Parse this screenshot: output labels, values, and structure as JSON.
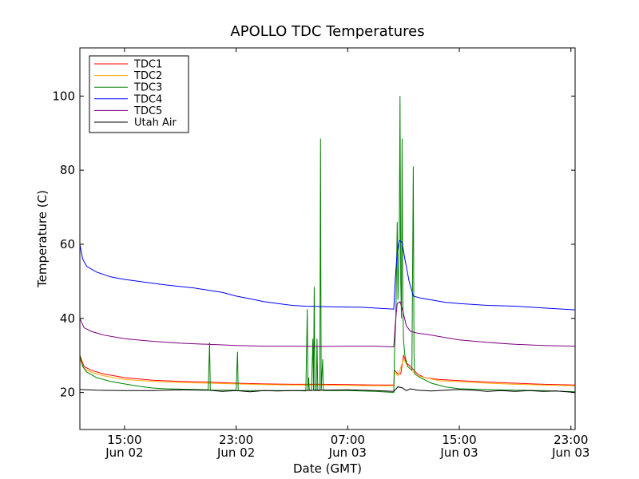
{
  "chart_data": {
    "type": "line",
    "title": "APOLLO TDC Temperatures",
    "xlabel": "Date (GMT)",
    "ylabel": "Temperature (C)",
    "xlim": [
      11.8,
      47.3
    ],
    "ylim": [
      10,
      113
    ],
    "y_ticks": [
      20,
      40,
      60,
      80,
      100
    ],
    "x_ticks": [
      {
        "x": 15,
        "time": "15:00",
        "date": "Jun 02"
      },
      {
        "x": 23,
        "time": "23:00",
        "date": "Jun 02"
      },
      {
        "x": 31,
        "time": "07:00",
        "date": "Jun 03"
      },
      {
        "x": 39,
        "time": "15:00",
        "date": "Jun 03"
      },
      {
        "x": 47,
        "time": "23:00",
        "date": "Jun 03"
      }
    ],
    "grid": false,
    "legend_position": "top-left",
    "series": [
      {
        "name": "TDC1",
        "color": "#ff0000",
        "points": [
          [
            11.8,
            30
          ],
          [
            12.1,
            27
          ],
          [
            12.6,
            26
          ],
          [
            13.5,
            25
          ],
          [
            15,
            24
          ],
          [
            17,
            23.3
          ],
          [
            19,
            23
          ],
          [
            21,
            22.8
          ],
          [
            23,
            22.5
          ],
          [
            25,
            22.3
          ],
          [
            27,
            22.2
          ],
          [
            29,
            22.2
          ],
          [
            31,
            22.1
          ],
          [
            33,
            22
          ],
          [
            34.3,
            22
          ],
          [
            34.35,
            26
          ],
          [
            34.6,
            25
          ],
          [
            34.8,
            25
          ],
          [
            35,
            30
          ],
          [
            35.2,
            28
          ],
          [
            35.5,
            27
          ],
          [
            36,
            25
          ],
          [
            36.5,
            24
          ],
          [
            37.5,
            23.5
          ],
          [
            39,
            23.2
          ],
          [
            41,
            22.8
          ],
          [
            43,
            22.5
          ],
          [
            45,
            22.2
          ],
          [
            47.3,
            22
          ]
        ]
      },
      {
        "name": "TDC2",
        "color": "#ffaa00",
        "points": [
          [
            11.8,
            29
          ],
          [
            12.1,
            26.5
          ],
          [
            12.6,
            25.5
          ],
          [
            13.5,
            24.5
          ],
          [
            15,
            23.5
          ],
          [
            17,
            23
          ],
          [
            19,
            22.7
          ],
          [
            21,
            22.5
          ],
          [
            23,
            22.3
          ],
          [
            25,
            22.1
          ],
          [
            27,
            22
          ],
          [
            29,
            22
          ],
          [
            31,
            21.9
          ],
          [
            33,
            21.8
          ],
          [
            34.3,
            21.8
          ],
          [
            34.35,
            25.5
          ],
          [
            34.6,
            24.5
          ],
          [
            35,
            29
          ],
          [
            35.3,
            27
          ],
          [
            36,
            24.5
          ],
          [
            37.5,
            23.2
          ],
          [
            39,
            22.9
          ],
          [
            41,
            22.5
          ],
          [
            43,
            22.2
          ],
          [
            45,
            22
          ],
          [
            47.3,
            21.8
          ]
        ]
      },
      {
        "name": "TDC3",
        "color": "#008000",
        "points": [
          [
            11.8,
            30
          ],
          [
            12,
            27
          ],
          [
            12.3,
            25.5
          ],
          [
            13,
            24
          ],
          [
            14,
            23
          ],
          [
            15,
            22.3
          ],
          [
            16,
            21.7
          ],
          [
            17,
            21.2
          ],
          [
            18,
            21
          ],
          [
            20,
            20.8
          ],
          [
            21,
            20.7
          ],
          [
            21.1,
            33.5
          ],
          [
            21.15,
            20.6
          ],
          [
            23,
            20.6
          ],
          [
            23.1,
            31
          ],
          [
            23.15,
            20.5
          ],
          [
            25,
            20.5
          ],
          [
            27,
            20.5
          ],
          [
            28,
            20.4
          ],
          [
            28.1,
            42.5
          ],
          [
            28.15,
            20.5
          ],
          [
            28.2,
            24
          ],
          [
            28.25,
            20.5
          ],
          [
            28.4,
            20.5
          ],
          [
            28.5,
            34.5
          ],
          [
            28.55,
            20.5
          ],
          [
            28.6,
            48.5
          ],
          [
            28.65,
            20.5
          ],
          [
            28.75,
            20.5
          ],
          [
            28.8,
            34.5
          ],
          [
            28.85,
            20.5
          ],
          [
            29,
            20.5
          ],
          [
            29.05,
            88.5
          ],
          [
            29.1,
            20.5
          ],
          [
            29.2,
            29
          ],
          [
            29.25,
            20.5
          ],
          [
            31,
            20.5
          ],
          [
            33,
            20.3
          ],
          [
            34.3,
            20
          ],
          [
            34.35,
            30
          ],
          [
            34.45,
            40
          ],
          [
            34.55,
            66
          ],
          [
            34.6,
            45
          ],
          [
            34.7,
            62
          ],
          [
            34.75,
            100
          ],
          [
            34.8,
            50
          ],
          [
            34.85,
            40
          ],
          [
            34.9,
            88.5
          ],
          [
            34.95,
            45
          ],
          [
            35,
            34
          ],
          [
            35.1,
            30
          ],
          [
            35.3,
            27
          ],
          [
            35.6,
            26
          ],
          [
            35.7,
            81
          ],
          [
            35.75,
            30
          ],
          [
            35.8,
            25
          ],
          [
            36.2,
            24
          ],
          [
            37,
            22.5
          ],
          [
            38,
            21.5
          ],
          [
            39,
            21
          ],
          [
            41,
            20.8
          ],
          [
            43,
            20.6
          ],
          [
            45,
            20.5
          ],
          [
            47.3,
            20.2
          ]
        ]
      },
      {
        "name": "TDC4",
        "color": "#0000ff",
        "points": [
          [
            11.8,
            60
          ],
          [
            12,
            56
          ],
          [
            12.3,
            54
          ],
          [
            13,
            52.5
          ],
          [
            14,
            51.2
          ],
          [
            15,
            50.5
          ],
          [
            16,
            50
          ],
          [
            17,
            49.5
          ],
          [
            18,
            49
          ],
          [
            20,
            48.2
          ],
          [
            21,
            47.6
          ],
          [
            22,
            47
          ],
          [
            23,
            46
          ],
          [
            24,
            45.3
          ],
          [
            25,
            44.5
          ],
          [
            26,
            44
          ],
          [
            27,
            43.5
          ],
          [
            28,
            43.3
          ],
          [
            30,
            43.1
          ],
          [
            32,
            43
          ],
          [
            34.3,
            42.5
          ],
          [
            34.4,
            50
          ],
          [
            34.55,
            58
          ],
          [
            34.7,
            61
          ],
          [
            34.9,
            60.5
          ],
          [
            35.1,
            56
          ],
          [
            35.4,
            50
          ],
          [
            35.7,
            46
          ],
          [
            36.2,
            45.5
          ],
          [
            37,
            45
          ],
          [
            38,
            44.3
          ],
          [
            39,
            44
          ],
          [
            41,
            43.5
          ],
          [
            43,
            43.3
          ],
          [
            45,
            42.8
          ],
          [
            47.3,
            42.3
          ]
        ]
      },
      {
        "name": "TDC5",
        "color": "#800080",
        "points": [
          [
            11.8,
            40
          ],
          [
            12.1,
            37.5
          ],
          [
            12.6,
            36.5
          ],
          [
            13.5,
            35.5
          ],
          [
            15,
            34.5
          ],
          [
            17,
            33.8
          ],
          [
            19,
            33.3
          ],
          [
            21,
            33
          ],
          [
            23,
            32.7
          ],
          [
            25,
            32.5
          ],
          [
            27,
            32.5
          ],
          [
            29,
            32.4
          ],
          [
            31,
            32.5
          ],
          [
            33,
            32.5
          ],
          [
            34.3,
            32.3
          ],
          [
            34.4,
            38
          ],
          [
            34.55,
            44
          ],
          [
            34.75,
            44.5
          ],
          [
            34.95,
            42
          ],
          [
            35.2,
            38
          ],
          [
            35.5,
            36.5
          ],
          [
            36,
            36
          ],
          [
            37,
            35.5
          ],
          [
            38,
            34.8
          ],
          [
            39,
            34.2
          ],
          [
            41,
            33.5
          ],
          [
            43,
            33
          ],
          [
            45,
            32.7
          ],
          [
            47.3,
            32.5
          ]
        ]
      },
      {
        "name": "Utah Air",
        "color": "#000000",
        "points": [
          [
            11.8,
            20.8
          ],
          [
            13,
            20.6
          ],
          [
            15,
            20.5
          ],
          [
            17,
            20.5
          ],
          [
            19,
            20.7
          ],
          [
            21,
            20.6
          ],
          [
            22,
            20.3
          ],
          [
            23,
            20.5
          ],
          [
            24,
            20.2
          ],
          [
            25,
            20.5
          ],
          [
            26,
            20.4
          ],
          [
            27,
            20.5
          ],
          [
            29,
            20.6
          ],
          [
            31,
            20.7
          ],
          [
            33,
            20.5
          ],
          [
            34.3,
            20.3
          ],
          [
            34.6,
            21.5
          ],
          [
            34.9,
            21.3
          ],
          [
            35.2,
            20.5
          ],
          [
            35.5,
            21
          ],
          [
            36,
            20.6
          ],
          [
            37,
            20.4
          ],
          [
            38,
            20.6
          ],
          [
            39,
            20.8
          ],
          [
            40,
            20.6
          ],
          [
            41,
            20.3
          ],
          [
            42,
            20.5
          ],
          [
            43,
            20.3
          ],
          [
            44,
            20.5
          ],
          [
            45,
            20.3
          ],
          [
            46,
            20.4
          ],
          [
            47.3,
            20
          ]
        ]
      }
    ]
  }
}
